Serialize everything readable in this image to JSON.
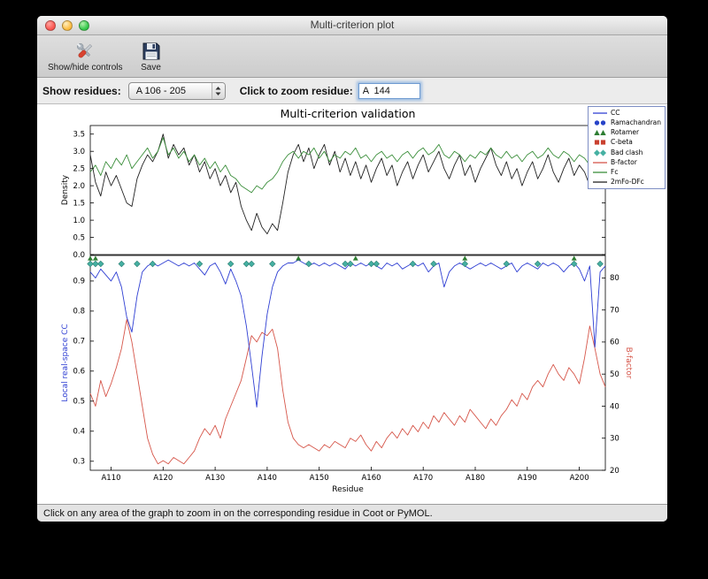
{
  "window": {
    "title": "Multi-criterion plot",
    "toolbar": {
      "show_hide_label": "Show/hide controls",
      "save_label": "Save"
    },
    "controls": {
      "show_residues_label": "Show residues:",
      "residue_range_value": "A 106 - 205",
      "zoom_label": "Click to zoom residue:",
      "zoom_value": "A  144"
    },
    "status_text": "Click on any area of the graph to zoom in on the corresponding residue in Coot or PyMOL."
  },
  "figure": {
    "legend": {
      "items": [
        {
          "label": "CC",
          "symbol": "line",
          "color": "#2f3fd3"
        },
        {
          "label": "Ramachandran",
          "symbol": "circles",
          "color": "#2743c8"
        },
        {
          "label": "Rotamer",
          "symbol": "triangles",
          "color": "#2e7d32"
        },
        {
          "label": "C-beta",
          "symbol": "squares",
          "color": "#c9402f"
        },
        {
          "label": "Bad clash",
          "symbol": "diamonds",
          "color": "#45b0a2"
        },
        {
          "label": "B-factor",
          "symbol": "line",
          "color": "#d6564a"
        },
        {
          "label": "Fc",
          "symbol": "line",
          "color": "#3c8f3c"
        },
        {
          "label": "2mFo-DFc",
          "symbol": "line",
          "color": "#222222"
        }
      ]
    }
  },
  "chart_data": {
    "type": "line",
    "title": "Multi-criterion validation",
    "xlabel": "Residue",
    "x_range": [
      106,
      205
    ],
    "xticks": [
      110,
      120,
      130,
      140,
      150,
      160,
      170,
      180,
      190,
      200
    ],
    "xtick_labels": [
      "A110",
      "A120",
      "A130",
      "A140",
      "A150",
      "A160",
      "A170",
      "A180",
      "A190",
      "A200"
    ],
    "top": {
      "ylabel": "Density",
      "ylim": [
        0,
        3.75
      ],
      "yticks": [
        0.0,
        0.5,
        1.0,
        1.5,
        2.0,
        2.5,
        3.0,
        3.5
      ],
      "series": [
        {
          "name": "Fc",
          "color": "#3c8f3c",
          "values": [
            2.4,
            2.6,
            2.3,
            2.7,
            2.5,
            2.8,
            2.6,
            2.9,
            2.5,
            2.7,
            2.9,
            3.1,
            2.8,
            3.0,
            3.4,
            2.9,
            3.1,
            2.8,
            3.0,
            2.7,
            2.9,
            2.6,
            2.8,
            2.5,
            2.7,
            2.4,
            2.6,
            2.3,
            2.2,
            2.0,
            1.9,
            1.8,
            2.0,
            1.9,
            2.1,
            2.2,
            2.4,
            2.7,
            2.9,
            3.0,
            2.8,
            3.0,
            2.9,
            3.1,
            2.8,
            3.0,
            2.7,
            2.9,
            2.8,
            3.0,
            2.9,
            3.1,
            2.8,
            2.9,
            2.7,
            2.9,
            3.0,
            2.8,
            2.9,
            2.7,
            2.9,
            3.0,
            2.8,
            3.0,
            3.1,
            2.9,
            3.0,
            3.2,
            2.9,
            2.8,
            3.0,
            2.9,
            2.7,
            2.9,
            2.8,
            3.0,
            2.9,
            3.1,
            2.9,
            2.8,
            3.0,
            2.8,
            2.9,
            2.7,
            2.9,
            3.0,
            2.8,
            2.9,
            3.1,
            2.9,
            2.8,
            3.0,
            2.9,
            2.7,
            2.9,
            2.8,
            2.6,
            2.9,
            2.7,
            2.8
          ]
        },
        {
          "name": "2mFo-DFc",
          "color": "#222222",
          "values": [
            2.9,
            2.1,
            1.7,
            2.4,
            2.0,
            2.3,
            1.9,
            1.5,
            1.4,
            2.2,
            2.6,
            2.9,
            2.7,
            3.0,
            3.5,
            2.8,
            3.2,
            2.9,
            3.1,
            2.6,
            2.9,
            2.4,
            2.7,
            2.2,
            2.5,
            2.0,
            2.3,
            1.8,
            2.1,
            1.4,
            1.0,
            0.7,
            1.2,
            0.8,
            0.6,
            0.9,
            0.7,
            1.5,
            2.4,
            2.9,
            3.2,
            2.7,
            3.1,
            2.5,
            2.9,
            3.2,
            2.6,
            3.0,
            2.4,
            2.8,
            2.3,
            2.7,
            2.2,
            2.6,
            2.1,
            2.5,
            2.8,
            2.3,
            2.6,
            2.0,
            2.4,
            2.7,
            2.2,
            2.6,
            2.9,
            2.4,
            2.7,
            3.0,
            2.5,
            2.2,
            2.6,
            2.9,
            2.3,
            2.6,
            2.1,
            2.5,
            2.8,
            3.1,
            2.6,
            2.3,
            2.7,
            2.2,
            2.5,
            2.0,
            2.4,
            2.7,
            2.2,
            2.5,
            2.9,
            2.4,
            2.1,
            2.5,
            2.8,
            2.3,
            2.6,
            2.4,
            2.0,
            2.7,
            2.3,
            2.5
          ]
        }
      ]
    },
    "bottom": {
      "left_ylabel": "Local real-space CC",
      "left_label_color": "#2f3fd3",
      "left_ylim": [
        0.27,
        0.985
      ],
      "left_yticks": [
        0.3,
        0.4,
        0.5,
        0.6,
        0.7,
        0.8,
        0.9
      ],
      "right_ylabel": "B-factor",
      "right_label_color": "#d6564a",
      "right_ylim": [
        20,
        87
      ],
      "right_yticks": [
        20,
        30,
        40,
        50,
        60,
        70,
        80
      ],
      "series": [
        {
          "name": "CC",
          "axis": "left",
          "color": "#2f3fd3",
          "values": [
            0.93,
            0.91,
            0.94,
            0.92,
            0.9,
            0.93,
            0.88,
            0.78,
            0.73,
            0.85,
            0.93,
            0.95,
            0.96,
            0.95,
            0.96,
            0.97,
            0.96,
            0.95,
            0.96,
            0.95,
            0.96,
            0.94,
            0.92,
            0.95,
            0.96,
            0.93,
            0.89,
            0.94,
            0.9,
            0.85,
            0.75,
            0.62,
            0.48,
            0.65,
            0.79,
            0.88,
            0.93,
            0.95,
            0.96,
            0.96,
            0.97,
            0.96,
            0.95,
            0.96,
            0.95,
            0.96,
            0.95,
            0.96,
            0.95,
            0.94,
            0.96,
            0.95,
            0.96,
            0.95,
            0.96,
            0.95,
            0.94,
            0.96,
            0.95,
            0.96,
            0.94,
            0.95,
            0.96,
            0.95,
            0.96,
            0.93,
            0.95,
            0.96,
            0.88,
            0.93,
            0.95,
            0.96,
            0.95,
            0.94,
            0.95,
            0.96,
            0.95,
            0.96,
            0.95,
            0.94,
            0.95,
            0.96,
            0.93,
            0.95,
            0.96,
            0.95,
            0.94,
            0.96,
            0.95,
            0.96,
            0.95,
            0.93,
            0.95,
            0.96,
            0.94,
            0.9,
            0.95,
            0.68,
            0.93,
            0.95
          ]
        },
        {
          "name": "B-factor",
          "axis": "right",
          "color": "#d6564a",
          "values": [
            44,
            40,
            48,
            43,
            47,
            52,
            58,
            67,
            60,
            50,
            40,
            30,
            25,
            22,
            23,
            22,
            24,
            23,
            22,
            24,
            26,
            30,
            33,
            31,
            34,
            30,
            36,
            40,
            44,
            48,
            55,
            62,
            60,
            63,
            62,
            64,
            58,
            45,
            35,
            30,
            28,
            27,
            28,
            27,
            26,
            28,
            27,
            29,
            28,
            27,
            30,
            29,
            31,
            28,
            26,
            29,
            27,
            30,
            32,
            30,
            33,
            31,
            34,
            32,
            35,
            33,
            37,
            35,
            38,
            36,
            34,
            37,
            35,
            39,
            37,
            35,
            33,
            36,
            34,
            37,
            39,
            42,
            40,
            44,
            42,
            46,
            48,
            46,
            50,
            53,
            50,
            48,
            52,
            50,
            47,
            55,
            65,
            58,
            50,
            46
          ]
        }
      ],
      "markers": [
        {
          "name": "Rotamer",
          "shape": "triangle",
          "color": "#2e7d32",
          "residues": [
            106,
            107,
            146,
            157,
            178,
            199
          ]
        },
        {
          "name": "Bad clash",
          "shape": "diamond",
          "color": "#45b0a2",
          "edge": "#2a7d71",
          "residues": [
            106,
            107,
            108,
            112,
            115,
            118,
            127,
            133,
            136,
            137,
            141,
            148,
            155,
            156,
            160,
            161,
            168,
            172,
            178,
            186,
            192,
            199,
            204
          ]
        }
      ]
    }
  }
}
